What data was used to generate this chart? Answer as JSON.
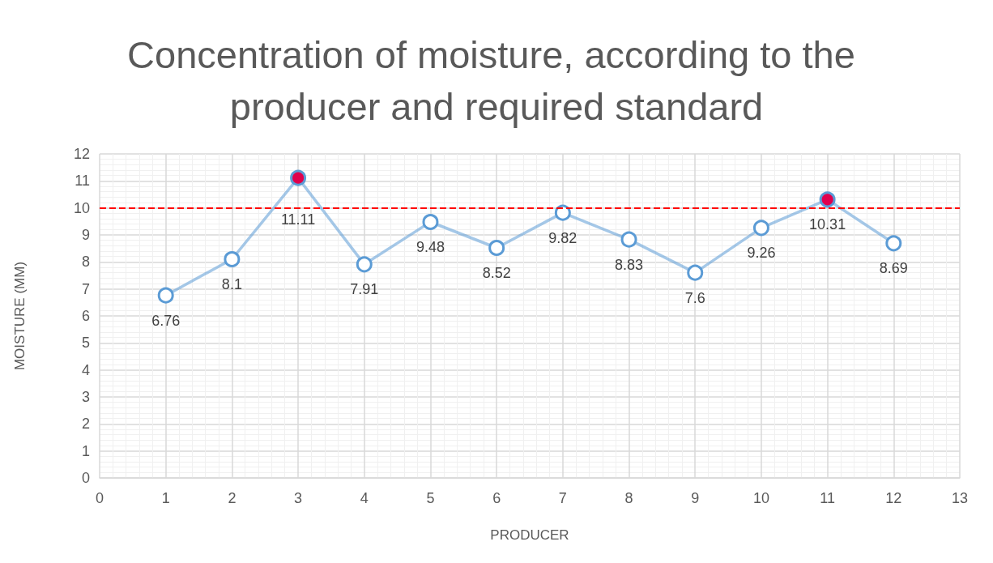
{
  "chart_data": {
    "type": "line",
    "title": "Concentration of moisture, according to the producer and required standard",
    "xlabel": "PRODUCER",
    "ylabel": "MOISTURE (MM)",
    "x": [
      1,
      2,
      3,
      4,
      5,
      6,
      7,
      8,
      9,
      10,
      11,
      12
    ],
    "values": [
      6.76,
      8.1,
      11.11,
      7.91,
      9.48,
      8.52,
      9.82,
      8.83,
      7.6,
      9.26,
      10.31,
      8.69
    ],
    "color": "#5b9bd5",
    "colors": [
      "#ffffff",
      "#ffffff",
      "#e0004d",
      "#ffffff",
      "#ffffff",
      "#ffffff",
      "#ffffff",
      "#ffffff",
      "#ffffff",
      "#ffffff",
      "#e0004d",
      "#ffffff"
    ],
    "marker": "circle",
    "data_labels": true,
    "xlim": [
      0,
      13
    ],
    "xticks": [
      0,
      1,
      2,
      3,
      4,
      5,
      6,
      7,
      8,
      9,
      10,
      11,
      12,
      13
    ],
    "ylim": [
      0,
      12
    ],
    "yticks": [
      0,
      1,
      2,
      3,
      4,
      5,
      6,
      7,
      8,
      9,
      10,
      11,
      12
    ],
    "grid": true,
    "ref_lines": [
      {
        "axis": "y",
        "value": 10,
        "color": "#ff0000",
        "line_style": "dashed"
      }
    ]
  }
}
